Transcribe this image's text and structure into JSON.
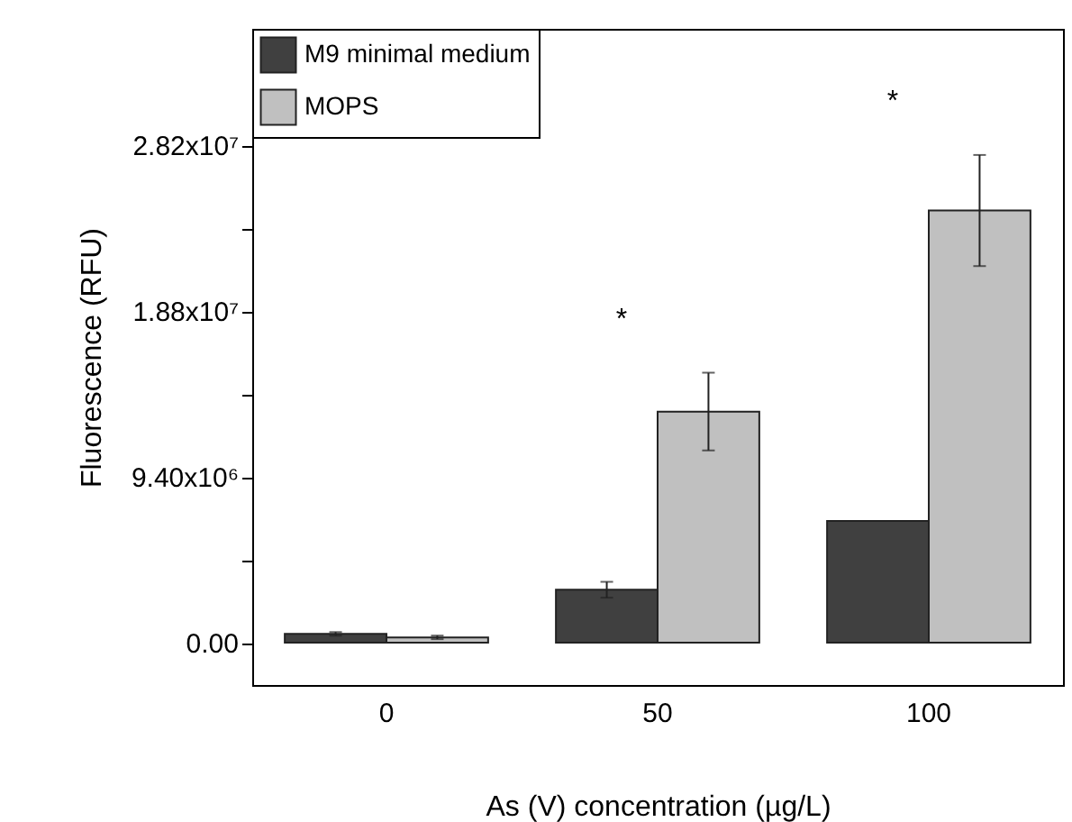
{
  "chart_data": {
    "type": "bar",
    "xlabel": "As (V) concentration (µg/L)",
    "ylabel": "Fluorescence (RFU)",
    "categories": [
      "0",
      "50",
      "100"
    ],
    "series": [
      {
        "name": "M9 minimal medium",
        "color": "#404040",
        "values": [
          500000,
          3000000,
          6900000
        ],
        "errors": [
          100000,
          450000,
          null
        ]
      },
      {
        "name": "MOPS",
        "color": "#c0c0c0",
        "values": [
          300000,
          13100000,
          24500000
        ],
        "errors": [
          100000,
          2200000,
          3150000
        ]
      }
    ],
    "ylim": [
      -2400000,
      34800000
    ],
    "yticks": [
      {
        "value": 0,
        "label": "0.00"
      },
      {
        "value": 4700000,
        "label": null
      },
      {
        "value": 9400000,
        "label": "9.40x10⁶"
      },
      {
        "value": 14100000,
        "label": null
      },
      {
        "value": 18800000,
        "label": "1.88x10⁷"
      },
      {
        "value": 23500000,
        "label": null
      },
      {
        "value": 28200000,
        "label": "2.82x10⁷"
      }
    ],
    "annotations": [
      "*",
      "*"
    ],
    "legend": "top left",
    "grid": false
  }
}
